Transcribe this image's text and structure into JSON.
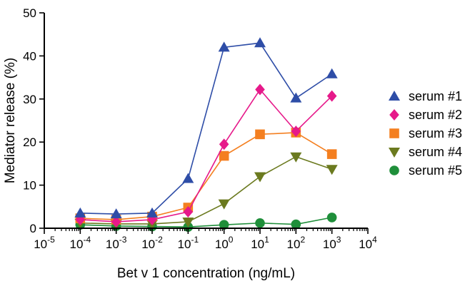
{
  "chart_data": {
    "type": "line",
    "title": "",
    "xlabel": "Bet v 1 concentration (ng/mL)",
    "ylabel": "Mediator release (%)",
    "xscale": "log",
    "xlim_exponent": [
      -5,
      4
    ],
    "ylim": [
      0,
      50
    ],
    "yticks": [
      0,
      10,
      20,
      30,
      40,
      50
    ],
    "xticks": [
      {
        "base": "10",
        "exp": "-5"
      },
      {
        "base": "10",
        "exp": "-4"
      },
      {
        "base": "10",
        "exp": "-3"
      },
      {
        "base": "10",
        "exp": "-2"
      },
      {
        "base": "10",
        "exp": "-1"
      },
      {
        "base": "10",
        "exp": "0"
      },
      {
        "base": "10",
        "exp": "1"
      },
      {
        "base": "10",
        "exp": "2"
      },
      {
        "base": "10",
        "exp": "3"
      },
      {
        "base": "10",
        "exp": "4"
      }
    ],
    "x_exponents": [
      -4,
      -3,
      -2,
      -1,
      0,
      1,
      2,
      3
    ],
    "grid": false,
    "legend_position": "right",
    "series": [
      {
        "name": "serum #1",
        "marker": "triangle-up",
        "color": "#2E4DA7",
        "values": [
          3.5,
          3.3,
          3.5,
          11.5,
          42,
          43,
          30.2,
          35.8
        ]
      },
      {
        "name": "serum #2",
        "marker": "diamond",
        "color": "#E6198A",
        "values": [
          2.0,
          1.5,
          2.0,
          3.8,
          19.5,
          32.2,
          22.5,
          30.7
        ]
      },
      {
        "name": "serum #3",
        "marker": "square",
        "color": "#F47F20",
        "values": [
          2.3,
          2.0,
          2.7,
          4.8,
          16.8,
          21.8,
          22.2,
          17.2
        ]
      },
      {
        "name": "serum #4",
        "marker": "triangle-down",
        "color": "#6B7A1F",
        "values": [
          1.2,
          1.0,
          1.0,
          1.5,
          5.7,
          12.0,
          16.6,
          13.7
        ]
      },
      {
        "name": "serum #5",
        "marker": "circle",
        "color": "#1F8F3A",
        "values": [
          0.8,
          0.5,
          0.4,
          0.3,
          0.8,
          1.2,
          0.9,
          2.5
        ]
      }
    ]
  }
}
